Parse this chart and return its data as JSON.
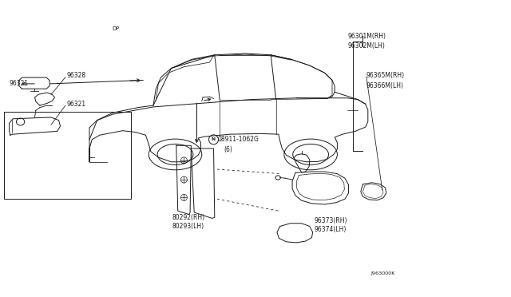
{
  "bg_color": "#ffffff",
  "line_color": "#1a1a1a",
  "fig_width": 6.4,
  "fig_height": 3.72,
  "font_size": 5.5,
  "line_width": 0.7,
  "labels": {
    "96321_top": [
      0.072,
      0.715,
      "96321"
    ],
    "96301": [
      0.695,
      0.88,
      "96301M(RH)"
    ],
    "96302": [
      0.695,
      0.845,
      "96302M(LH)"
    ],
    "96365": [
      0.718,
      0.745,
      "96365M(RH)"
    ],
    "96366": [
      0.718,
      0.71,
      "96366M(LH)"
    ],
    "N08911": [
      0.415,
      0.53,
      "N08911-1062G"
    ],
    "N_6": [
      0.44,
      0.495,
      "(6)"
    ],
    "80292": [
      0.345,
      0.265,
      "80292(RH)"
    ],
    "80293": [
      0.345,
      0.235,
      "80293(LH)"
    ],
    "96373": [
      0.72,
      0.255,
      "96373(RH)"
    ],
    "96374": [
      0.72,
      0.225,
      "96374(LH)"
    ],
    "J963000K": [
      0.73,
      0.075,
      "J963000K"
    ],
    "DP": [
      0.218,
      0.905,
      "DP"
    ],
    "96328": [
      0.138,
      0.74,
      "96328"
    ],
    "96321_box": [
      0.163,
      0.645,
      "96321"
    ]
  }
}
